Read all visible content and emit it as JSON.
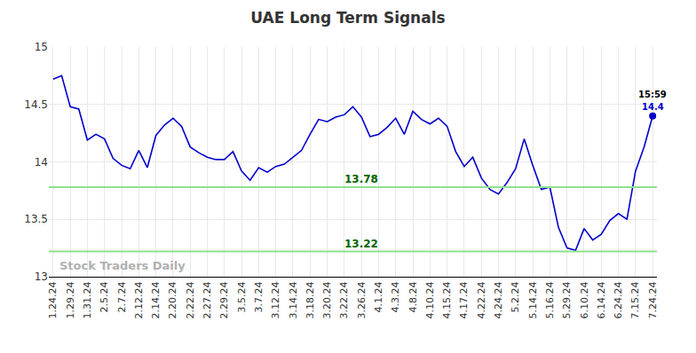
{
  "chart_data": {
    "type": "line",
    "title": "UAE Long Term Signals",
    "color": "#0000cc",
    "grid": true,
    "categories": [
      "1.24.24",
      null,
      "1.29.24",
      null,
      "1.31.24",
      null,
      "2.5.24",
      null,
      "2.7.24",
      null,
      "2.12.24",
      null,
      "2.14.24",
      null,
      "2.20.24",
      null,
      "2.22.24",
      null,
      "2.27.24",
      null,
      "2.29.24",
      null,
      "3.5.24",
      null,
      "3.7.24",
      null,
      "3.12.24",
      null,
      "3.14.24",
      null,
      "3.18.24",
      null,
      "3.20.24",
      null,
      "3.22.24",
      null,
      "3.26.24",
      null,
      "4.1.24",
      null,
      "4.3.24",
      null,
      "4.8.24",
      null,
      "4.10.24",
      null,
      "4.15.24",
      null,
      "4.17.24",
      null,
      "4.22.24",
      null,
      "4.24.24",
      null,
      "5.2.24",
      null,
      "5.14.24",
      null,
      "5.16.24",
      null,
      "5.29.24",
      null,
      "6.10.24",
      null,
      "6.14.24",
      null,
      "6.24.24",
      null,
      "7.15.24",
      null,
      "7.24.24"
    ],
    "values": [
      14.72,
      14.75,
      14.48,
      14.46,
      14.19,
      14.24,
      14.2,
      14.03,
      13.97,
      13.94,
      14.1,
      13.95,
      14.23,
      14.32,
      14.38,
      14.31,
      14.13,
      14.08,
      14.04,
      14.02,
      14.02,
      14.09,
      13.92,
      13.84,
      13.95,
      13.91,
      13.96,
      13.98,
      14.04,
      14.1,
      14.24,
      14.37,
      14.35,
      14.39,
      14.41,
      14.48,
      14.39,
      14.22,
      14.24,
      14.3,
      14.38,
      14.24,
      14.44,
      14.37,
      14.33,
      14.38,
      14.31,
      14.09,
      13.96,
      14.04,
      13.86,
      13.76,
      13.72,
      13.82,
      13.94,
      14.2,
      13.97,
      13.76,
      13.78,
      13.43,
      13.25,
      13.23,
      13.42,
      13.32,
      13.37,
      13.49,
      13.55,
      13.5,
      13.92,
      14.13,
      14.4
    ],
    "ylim": [
      13,
      15
    ],
    "yticks": [
      13,
      13.5,
      14,
      14.5,
      15
    ],
    "reference_lines": [
      {
        "value": 13.78,
        "label": "13.78",
        "color": "#90e090"
      },
      {
        "value": 13.22,
        "label": "13.22",
        "color": "#90e090"
      }
    ],
    "last_point": {
      "time": "15:59",
      "label": "14.4",
      "marker": "circle"
    },
    "watermark": "Stock Traders Daily"
  }
}
